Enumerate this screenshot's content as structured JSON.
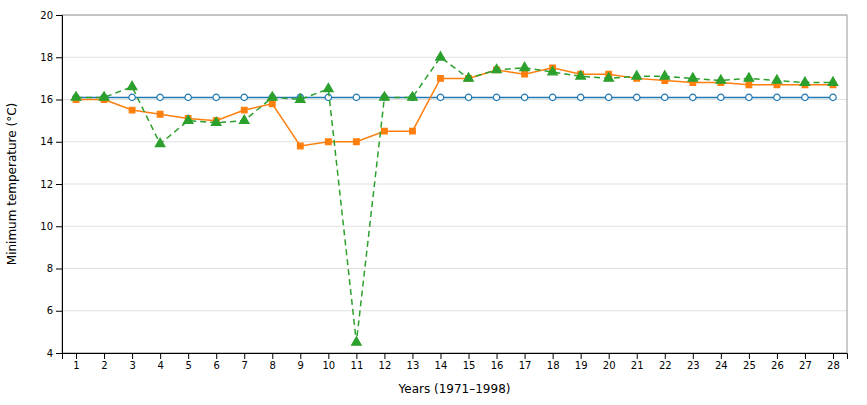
{
  "chart_data": {
    "type": "line",
    "x": [
      1,
      2,
      3,
      4,
      5,
      6,
      7,
      8,
      9,
      10,
      11,
      12,
      13,
      14,
      15,
      16,
      17,
      18,
      19,
      20,
      21,
      22,
      23,
      24,
      25,
      26,
      27,
      28
    ],
    "series": [
      {
        "values": [
          16.1,
          16.1,
          16.1,
          16.1,
          16.1,
          16.1,
          16.1,
          16.1,
          16.1,
          16.1,
          16.1,
          16.1,
          16.1,
          16.1,
          16.1,
          16.1,
          16.1,
          16.1,
          16.1,
          16.1,
          16.1,
          16.1,
          16.1,
          16.1,
          16.1,
          16.1,
          16.1,
          16.1
        ],
        "marker": "circle-open",
        "line_style": "solid"
      },
      {
        "values": [
          16.0,
          16.0,
          15.5,
          15.3,
          15.1,
          15.0,
          15.5,
          15.8,
          13.8,
          14.0,
          14.0,
          14.5,
          14.5,
          17.0,
          17.0,
          17.4,
          17.2,
          17.5,
          17.2,
          17.2,
          17.0,
          16.9,
          16.8,
          16.8,
          16.7,
          16.7,
          16.7,
          16.7
        ],
        "marker": "square",
        "line_style": "solid"
      },
      {
        "values": [
          16.1,
          16.1,
          16.6,
          13.9,
          15.0,
          14.9,
          15.0,
          16.1,
          16.0,
          16.5,
          4.5,
          16.1,
          16.1,
          18.0,
          17.0,
          17.4,
          17.5,
          17.3,
          17.1,
          17.0,
          17.1,
          17.1,
          17.0,
          16.9,
          17.0,
          16.9,
          16.8,
          16.8
        ],
        "marker": "triangle",
        "line_style": "dashed"
      }
    ],
    "xlabel": "Years (1971–1998)",
    "ylabel": "Minimum temperature (°C)",
    "xlim": [
      0.5,
      28.5
    ],
    "ylim": [
      4,
      20
    ],
    "xticks": [
      1,
      2,
      3,
      4,
      5,
      6,
      7,
      8,
      9,
      10,
      11,
      12,
      13,
      14,
      15,
      16,
      17,
      18,
      19,
      20,
      21,
      22,
      23,
      24,
      25,
      26,
      27,
      28
    ],
    "yticks": [
      4,
      6,
      8,
      10,
      12,
      14,
      16,
      18,
      20
    ],
    "grid": true
  }
}
